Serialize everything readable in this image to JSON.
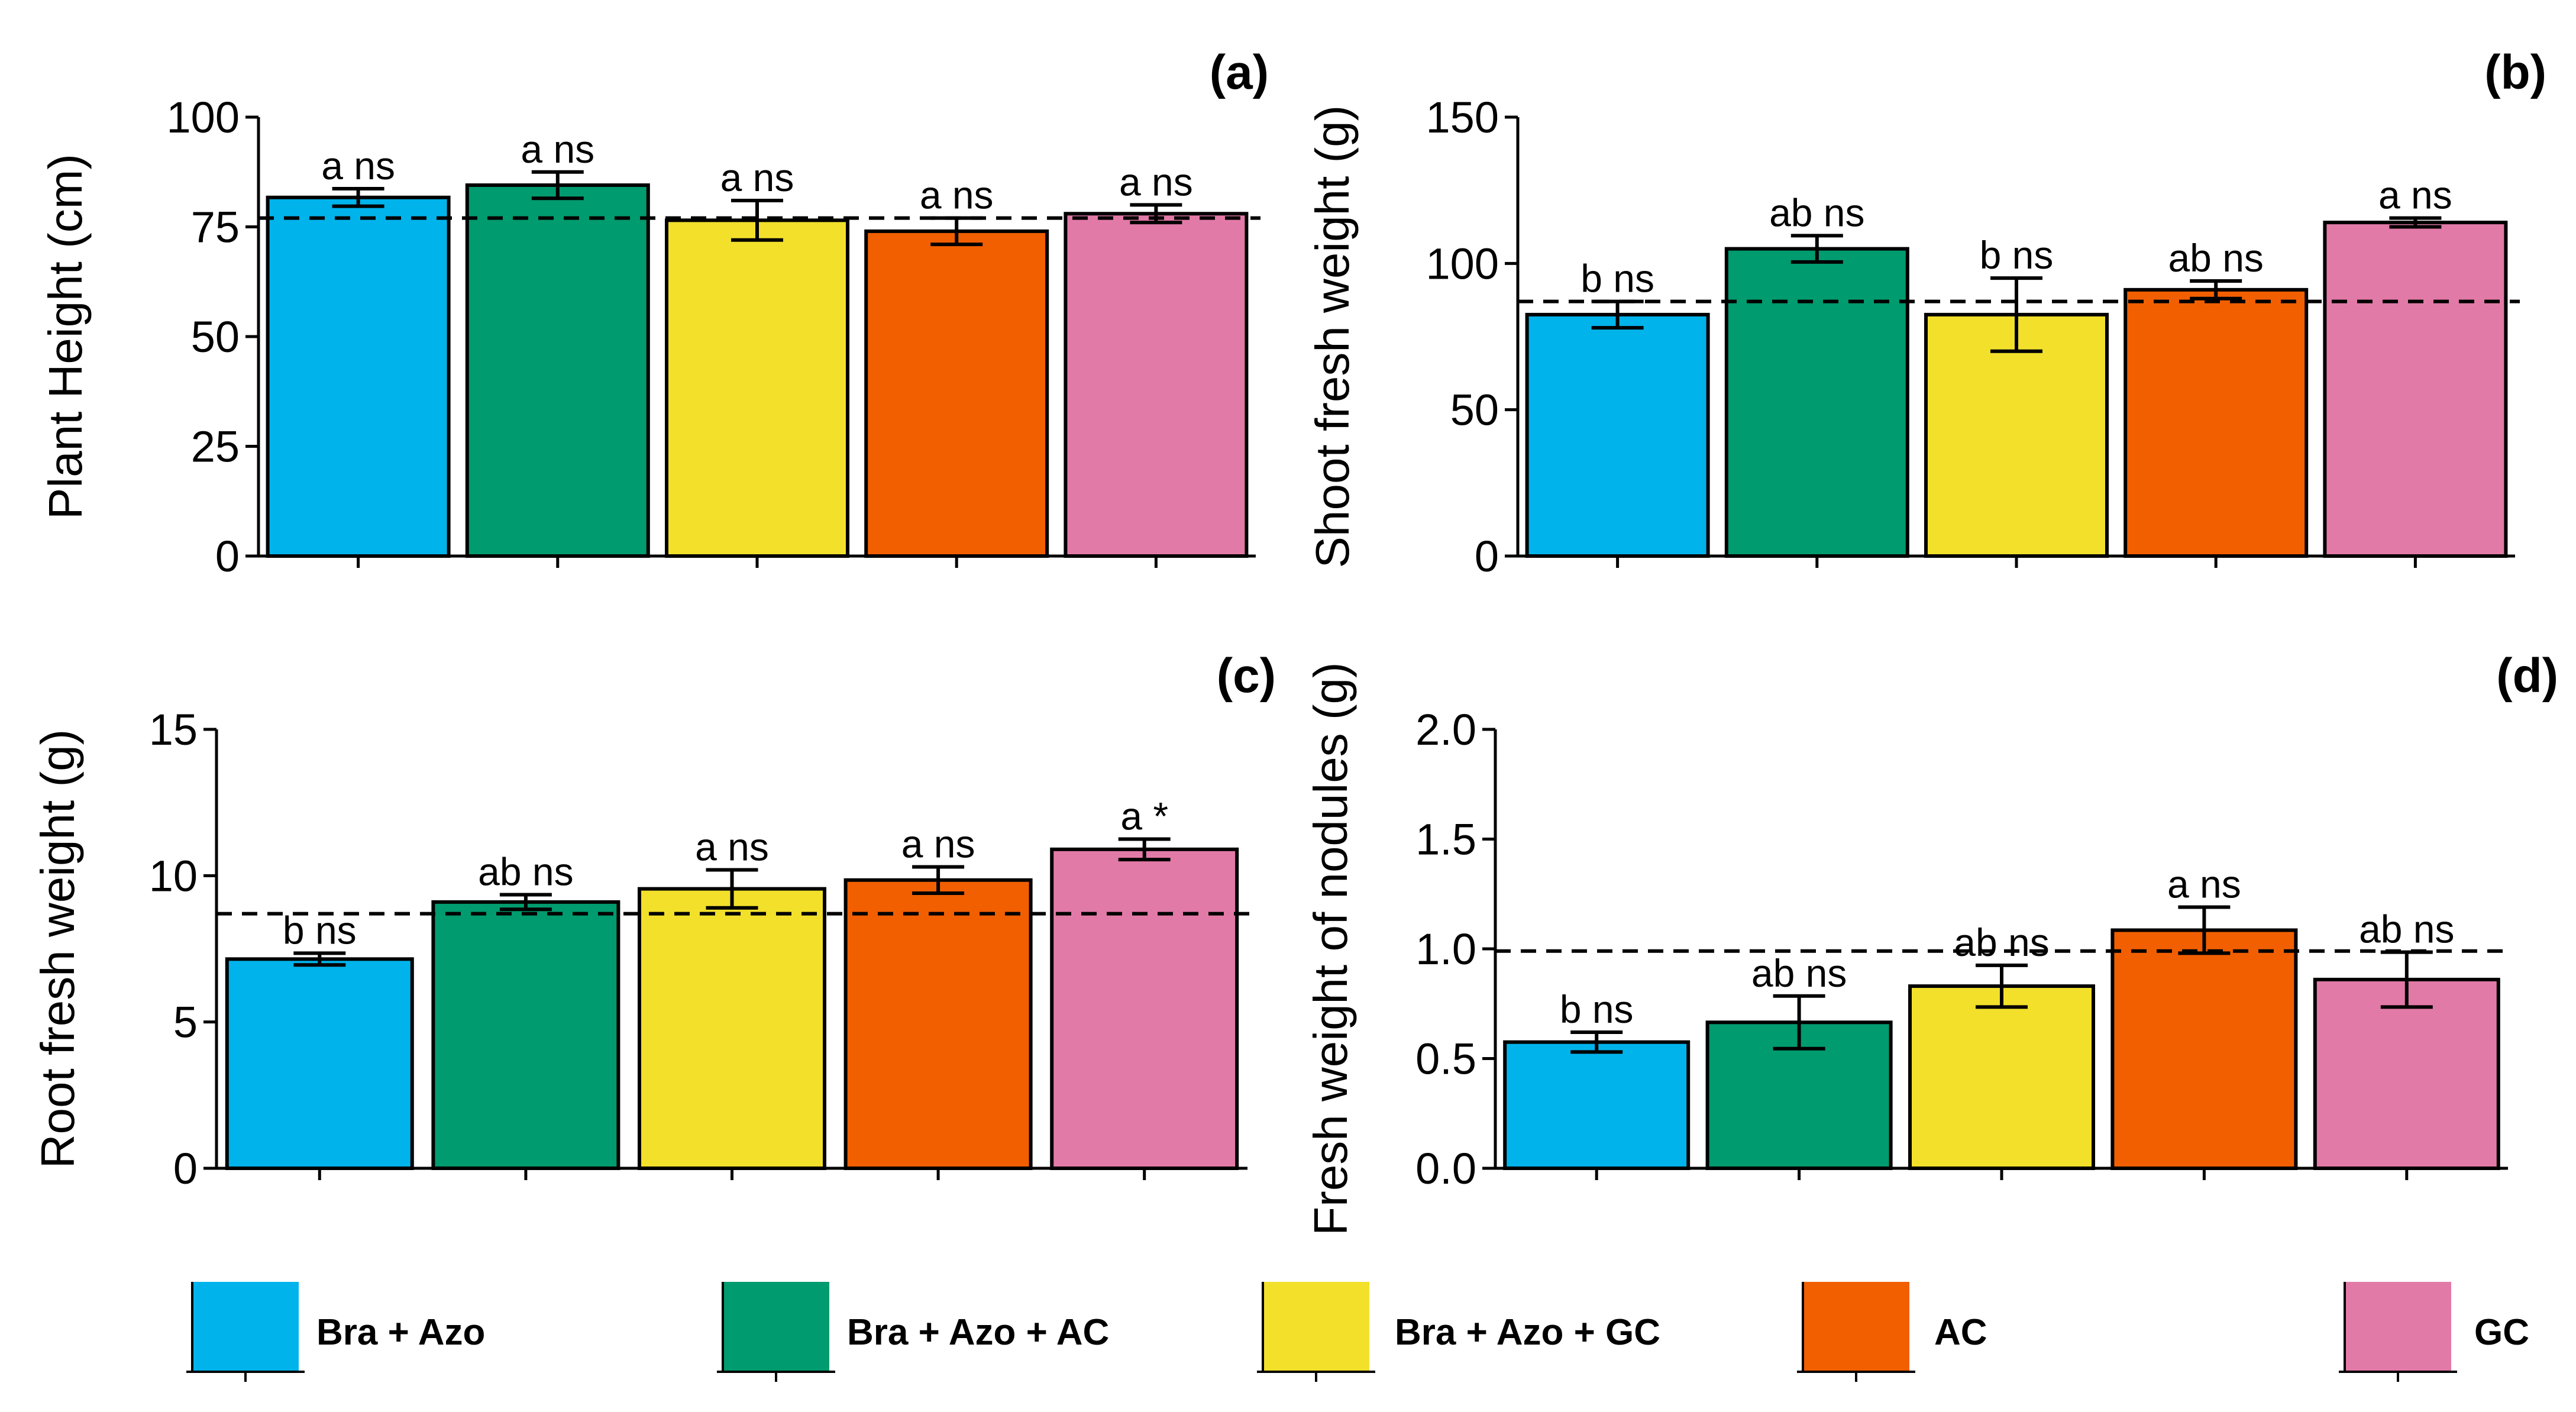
{
  "chart_data": [
    {
      "type": "bar",
      "panel": "(a)",
      "ylabel": "Plant Height (cm)",
      "ylim": [
        0,
        100
      ],
      "yticks": [
        0,
        25,
        50,
        75,
        100
      ],
      "tick_labels": [
        "0",
        "25",
        "50",
        "75",
        "100"
      ],
      "categories": [
        "Bra + Azo",
        "Bra + Azo + AC",
        "Bra + Azo + GC",
        "AC",
        "GC"
      ],
      "values": [
        81.7,
        84.5,
        76.5,
        74,
        78
      ],
      "errors": [
        2,
        3,
        4.5,
        3,
        2
      ],
      "labels": [
        "a ns",
        "a ns",
        "a ns",
        "a ns",
        "a ns"
      ],
      "reference_line": 77
    },
    {
      "type": "bar",
      "panel": "(b)",
      "ylabel": "Shoot fresh weight (g)",
      "ylim": [
        0,
        150
      ],
      "yticks": [
        0,
        50,
        100,
        150
      ],
      "tick_labels": [
        "0",
        "50",
        "100",
        "150"
      ],
      "categories": [
        "Bra + Azo",
        "Bra + Azo + AC",
        "Bra + Azo + GC",
        "AC",
        "GC"
      ],
      "values": [
        82.5,
        105,
        82.5,
        91,
        114
      ],
      "errors": [
        4.5,
        4.5,
        12.5,
        3,
        1.5
      ],
      "labels": [
        "b ns",
        "ab ns",
        "b ns",
        "ab ns",
        "a ns"
      ],
      "reference_line": 87
    },
    {
      "type": "bar",
      "panel": "(c)",
      "ylabel": "Root fresh weight (g)",
      "ylim": [
        0,
        15
      ],
      "yticks": [
        0,
        5,
        10,
        15
      ],
      "tick_labels": [
        "0",
        "5",
        "10",
        "15"
      ],
      "categories": [
        "Bra + Azo",
        "Bra + Azo + AC",
        "Bra + Azo + GC",
        "AC",
        "GC"
      ],
      "values": [
        7.15,
        9.1,
        9.55,
        9.85,
        10.9
      ],
      "errors": [
        0.2,
        0.25,
        0.65,
        0.45,
        0.35
      ],
      "labels": [
        "b ns",
        "ab ns",
        "a ns",
        "a ns",
        "a *"
      ],
      "reference_line": 8.7
    },
    {
      "type": "bar",
      "panel": "(d)",
      "ylabel": "Fresh weight of nodules (g)",
      "ylim": [
        0,
        2
      ],
      "yticks": [
        0,
        0.5,
        1,
        1.5,
        2
      ],
      "tick_labels": [
        "0.0",
        "0.5",
        "1.0",
        "1.5",
        "2.0"
      ],
      "categories": [
        "Bra + Azo",
        "Bra + Azo + AC",
        "Bra + Azo + GC",
        "AC",
        "GC"
      ],
      "values": [
        0.575,
        0.665,
        0.83,
        1.085,
        0.86
      ],
      "errors": [
        0.045,
        0.12,
        0.095,
        0.105,
        0.125
      ],
      "labels": [
        "b ns",
        "ab ns",
        "ab ns",
        "a ns",
        "ab ns"
      ],
      "reference_line": 0.99
    }
  ],
  "legend": [
    {
      "label": "Bra + Azo",
      "color": "#00b3eb"
    },
    {
      "label": "Bra + Azo + AC",
      "color": "#009b6e"
    },
    {
      "label": "Bra + Azo + GC",
      "color": "#f2e02b"
    },
    {
      "label": "AC",
      "color": "#f25f00"
    },
    {
      "label": "GC",
      "color": "#e27aa7"
    }
  ]
}
